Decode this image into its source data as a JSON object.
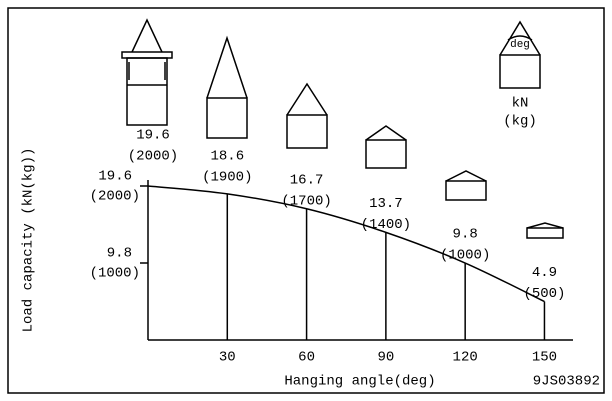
{
  "chart_data": {
    "type": "line",
    "x_label": "Hanging angle(deg)",
    "y_label": "Load capacity (kN(kg))",
    "x": [
      0,
      30,
      60,
      90,
      120,
      150
    ],
    "series": [
      {
        "name": "Load capacity",
        "color": "#000000",
        "values": [
          19.6,
          18.6,
          16.7,
          13.7,
          9.8,
          4.9
        ],
        "kg_labels": [
          "(2000)",
          "(1900)",
          "(1700)",
          "(1400)",
          "(1000)",
          "(500)"
        ]
      }
    ],
    "xlim": [
      0,
      160.8
    ],
    "ylim": [
      0,
      19.6
    ],
    "xticks": [
      30,
      60,
      90,
      120,
      150
    ],
    "yticks": [
      9.8,
      19.6
    ],
    "ytick_sublabels": [
      "(1000)",
      "(2000)"
    ],
    "legend": {
      "angle_unit": "deg",
      "force_unit": "kN",
      "mass_unit": "(kg)"
    },
    "figure_id": "9JS03892"
  }
}
